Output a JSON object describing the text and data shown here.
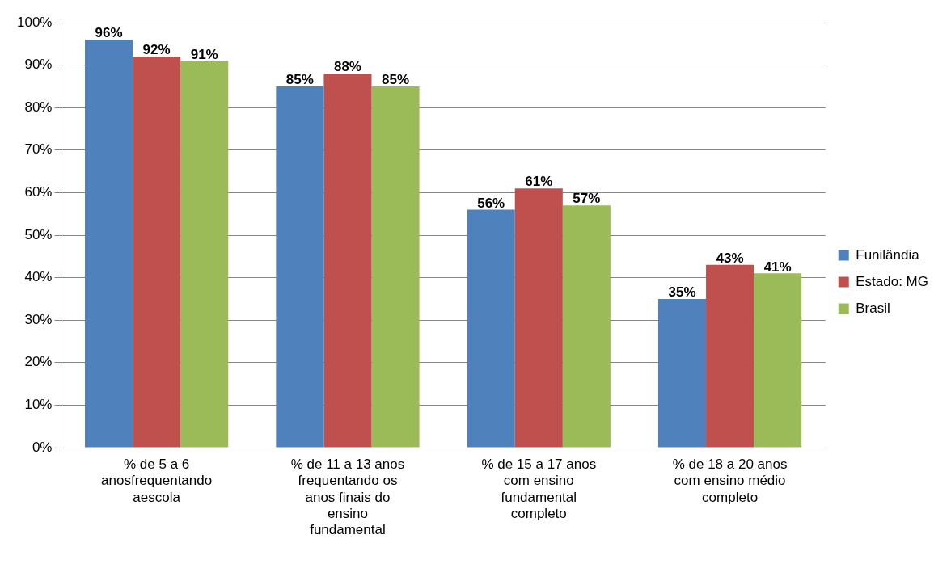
{
  "chart_data": {
    "type": "bar",
    "categories": [
      "% de 5 a 6 anosfrequentando aescola",
      "% de 11 a 13 anos frequentando os anos finais do ensino fundamental",
      "% de 15 a 17 anos com ensino fundamental completo",
      "% de 18 a 20 anos com ensino médio completo"
    ],
    "series": [
      {
        "name": "Funilândia",
        "color": "#4f81bd",
        "values": [
          96,
          85,
          56,
          35
        ],
        "value_labels": [
          "96%",
          "85%",
          "56%",
          "35%"
        ]
      },
      {
        "name": "Estado: MG",
        "color": "#c0504d",
        "values": [
          92,
          88,
          61,
          43
        ],
        "value_labels": [
          "92%",
          "88%",
          "61%",
          "43%"
        ]
      },
      {
        "name": "Brasil",
        "color": "#9bbb59",
        "values": [
          91,
          85,
          57,
          41
        ],
        "value_labels": [
          "91%",
          "85%",
          "57%",
          "41%"
        ]
      }
    ],
    "ylim": [
      0,
      100
    ],
    "yticks": [
      {
        "value": 0,
        "label": "0%"
      },
      {
        "value": 10,
        "label": "10%"
      },
      {
        "value": 20,
        "label": "20%"
      },
      {
        "value": 30,
        "label": "30%"
      },
      {
        "value": 40,
        "label": "40%"
      },
      {
        "value": 50,
        "label": "50%"
      },
      {
        "value": 60,
        "label": "60%"
      },
      {
        "value": 70,
        "label": "70%"
      },
      {
        "value": 80,
        "label": "80%"
      },
      {
        "value": 90,
        "label": "90%"
      },
      {
        "value": 100,
        "label": "100%"
      }
    ],
    "grid": "y",
    "legend": "right"
  }
}
